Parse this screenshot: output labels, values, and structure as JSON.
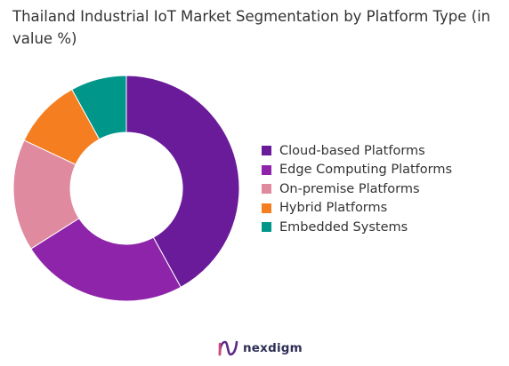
{
  "chart_data": {
    "type": "pie",
    "title": "Thailand Industrial IoT Market Segmentation by Platform Type (in value %)",
    "categories": [
      "Cloud-based Platforms",
      "Edge Computing Platforms",
      "On-premise Platforms",
      "Hybrid Platforms",
      "Embedded Systems"
    ],
    "values": [
      42,
      24,
      16,
      10,
      8
    ],
    "colors": [
      "#6a1b9a",
      "#8e24aa",
      "#e08aa0",
      "#f57f20",
      "#00968a"
    ],
    "hole": "donut",
    "legend_position": "right"
  },
  "brand": {
    "name": "nexdigm",
    "logo_icon": "nexdigm-logo-icon",
    "color": "#2e2e55"
  }
}
